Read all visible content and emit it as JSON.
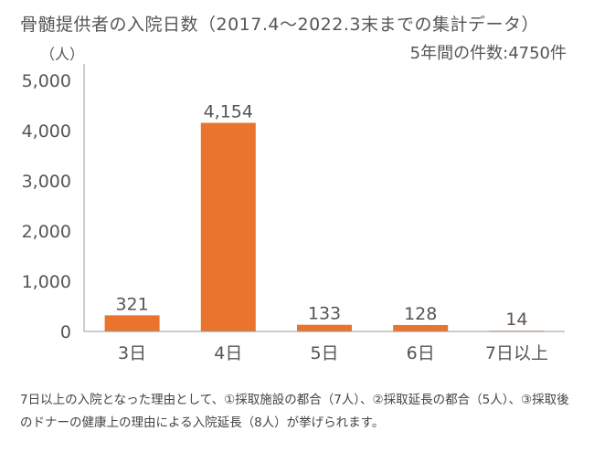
{
  "title": "骨髄提供者の入院日数（2017.4〜2022.3末までの集計データ）",
  "subtitle": "5年間の件数:4750件",
  "unit_label": "（人）",
  "note": "7日以上の入院となった理由として、①採取施設の都合（7人）、②採取延長の都合（5人）、③採取後のドナーの健康上の理由による入院延長（8人）が挙げられます。",
  "colors": {
    "bar": "#E8742E",
    "axis": "#999999",
    "text": "#555555"
  },
  "chart_data": {
    "type": "bar",
    "categories": [
      "3日",
      "4日",
      "5日",
      "6日",
      "7日以上"
    ],
    "values": [
      321,
      4154,
      133,
      128,
      14
    ],
    "value_labels": [
      "321",
      "4,154",
      "133",
      "128",
      "14"
    ],
    "yticks": [
      0,
      1000,
      2000,
      3000,
      4000,
      5000
    ],
    "ytick_labels": [
      "0",
      "1,000",
      "2,000",
      "3,000",
      "4,000",
      "5,000"
    ],
    "ylim": [
      0,
      5000
    ],
    "grid": false
  }
}
